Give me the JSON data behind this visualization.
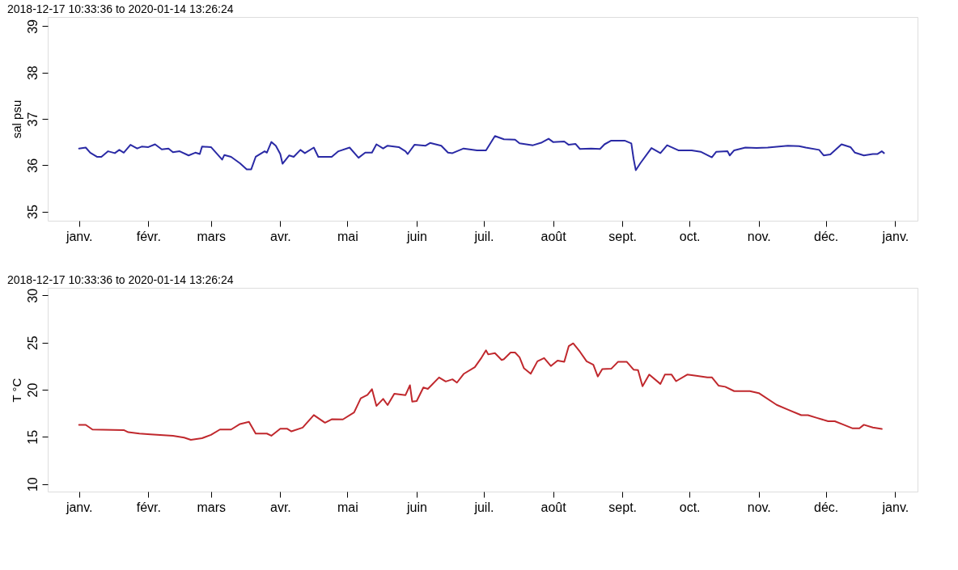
{
  "chart_data": [
    {
      "type": "line",
      "title": "2018-12-17 10:33:36 to 2020-01-14 13:26:24",
      "ylabel": "sal psu",
      "grid": false,
      "marker": "none",
      "line_style": "solid",
      "xlim": [
        "2018-12-18",
        "2020-01-11"
      ],
      "ylim": [
        34.8,
        39.2
      ],
      "yticks": [
        35,
        36,
        37,
        38,
        39
      ],
      "xticks": [
        {
          "value": "2019-01-01",
          "label": "janv."
        },
        {
          "value": "2019-02-01",
          "label": "févr."
        },
        {
          "value": "2019-03-01",
          "label": "mars"
        },
        {
          "value": "2019-04-01",
          "label": "avr."
        },
        {
          "value": "2019-05-01",
          "label": "mai"
        },
        {
          "value": "2019-06-01",
          "label": "juin"
        },
        {
          "value": "2019-07-01",
          "label": "juil."
        },
        {
          "value": "2019-08-01",
          "label": "août"
        },
        {
          "value": "2019-09-01",
          "label": "sept."
        },
        {
          "value": "2019-10-01",
          "label": "oct."
        },
        {
          "value": "2019-11-01",
          "label": "nov."
        },
        {
          "value": "2019-12-01",
          "label": "déc."
        },
        {
          "value": "2020-01-01",
          "label": "janv."
        }
      ],
      "series": [
        {
          "color": "#2a2aa5",
          "x": [
            "2019-01-01",
            "2019-01-04",
            "2019-01-06",
            "2019-01-09",
            "2019-01-11",
            "2019-01-14",
            "2019-01-17",
            "2019-01-19",
            "2019-01-21",
            "2019-01-24",
            "2019-01-27",
            "2019-01-29",
            "2019-02-01",
            "2019-02-04",
            "2019-02-07",
            "2019-02-10",
            "2019-02-12",
            "2019-02-15",
            "2019-02-19",
            "2019-02-22",
            "2019-02-24",
            "2019-02-25",
            "2019-03-01",
            "2019-03-06",
            "2019-03-07",
            "2019-03-10",
            "2019-03-14",
            "2019-03-17",
            "2019-03-19",
            "2019-03-21",
            "2019-03-25",
            "2019-03-26",
            "2019-03-28",
            "2019-03-30",
            "2019-04-01",
            "2019-04-02",
            "2019-04-05",
            "2019-04-07",
            "2019-04-10",
            "2019-04-12",
            "2019-04-16",
            "2019-04-18",
            "2019-04-24",
            "2019-04-27",
            "2019-05-02",
            "2019-05-06",
            "2019-05-09",
            "2019-05-12",
            "2019-05-14",
            "2019-05-17",
            "2019-05-19",
            "2019-05-24",
            "2019-05-27",
            "2019-05-28",
            "2019-05-31",
            "2019-06-05",
            "2019-06-07",
            "2019-06-12",
            "2019-06-15",
            "2019-06-17",
            "2019-06-22",
            "2019-06-28",
            "2019-07-02",
            "2019-07-06",
            "2019-07-10",
            "2019-07-15",
            "2019-07-17",
            "2019-07-23",
            "2019-07-27",
            "2019-07-30",
            "2019-08-01",
            "2019-08-06",
            "2019-08-08",
            "2019-08-11",
            "2019-08-13",
            "2019-08-18",
            "2019-08-22",
            "2019-08-24",
            "2019-08-27",
            "2019-09-02",
            "2019-09-05",
            "2019-09-06",
            "2019-09-07",
            "2019-09-09",
            "2019-09-14",
            "2019-09-18",
            "2019-09-21",
            "2019-09-26",
            "2019-10-02",
            "2019-10-06",
            "2019-10-11",
            "2019-10-13",
            "2019-10-18",
            "2019-10-19",
            "2019-10-21",
            "2019-10-26",
            "2019-10-31",
            "2019-11-05",
            "2019-11-14",
            "2019-11-19",
            "2019-11-22",
            "2019-11-28",
            "2019-11-30",
            "2019-12-03",
            "2019-12-08",
            "2019-12-12",
            "2019-12-14",
            "2019-12-18",
            "2019-12-22",
            "2019-12-24",
            "2019-12-26",
            "2019-12-27"
          ],
          "values": [
            36.36,
            36.38,
            36.27,
            36.18,
            36.18,
            36.3,
            36.26,
            36.33,
            36.27,
            36.44,
            36.36,
            36.4,
            36.39,
            36.45,
            36.34,
            36.36,
            36.28,
            36.3,
            36.21,
            36.27,
            36.24,
            36.4,
            36.39,
            36.12,
            36.22,
            36.18,
            36.04,
            35.91,
            35.91,
            36.18,
            36.3,
            36.27,
            36.5,
            36.42,
            36.24,
            36.03,
            36.21,
            36.18,
            36.33,
            36.26,
            36.38,
            36.18,
            36.18,
            36.3,
            36.38,
            36.16,
            36.27,
            36.27,
            36.45,
            36.36,
            36.42,
            36.39,
            36.3,
            36.24,
            36.44,
            36.42,
            36.48,
            36.42,
            36.27,
            36.26,
            36.36,
            36.32,
            36.32,
            36.63,
            36.56,
            36.55,
            36.47,
            36.43,
            36.49,
            36.57,
            36.5,
            36.51,
            36.44,
            36.46,
            36.35,
            36.36,
            36.35,
            36.45,
            36.53,
            36.53,
            36.47,
            36.14,
            35.89,
            36.04,
            36.37,
            36.26,
            36.43,
            36.32,
            36.32,
            36.29,
            36.17,
            36.29,
            36.3,
            36.21,
            36.32,
            36.38,
            36.37,
            36.38,
            36.42,
            36.41,
            36.38,
            36.33,
            36.21,
            36.23,
            36.45,
            36.39,
            36.27,
            36.21,
            36.24,
            36.24,
            36.3,
            36.26
          ]
        }
      ]
    },
    {
      "type": "line",
      "title": "2018-12-17 10:33:36 to 2020-01-14 13:26:24",
      "ylabel": "T °C",
      "grid": false,
      "marker": "none",
      "line_style": "solid",
      "xlim": [
        "2018-12-18",
        "2020-01-11"
      ],
      "ylim": [
        9.2,
        30.8
      ],
      "yticks": [
        10,
        15,
        20,
        25,
        30
      ],
      "xticks": [
        {
          "value": "2019-01-01",
          "label": "janv."
        },
        {
          "value": "2019-02-01",
          "label": "févr."
        },
        {
          "value": "2019-03-01",
          "label": "mars"
        },
        {
          "value": "2019-04-01",
          "label": "avr."
        },
        {
          "value": "2019-05-01",
          "label": "mai"
        },
        {
          "value": "2019-06-01",
          "label": "juin"
        },
        {
          "value": "2019-07-01",
          "label": "juil."
        },
        {
          "value": "2019-08-01",
          "label": "août"
        },
        {
          "value": "2019-09-01",
          "label": "sept."
        },
        {
          "value": "2019-10-01",
          "label": "oct."
        },
        {
          "value": "2019-11-01",
          "label": "nov."
        },
        {
          "value": "2019-12-01",
          "label": "déc."
        },
        {
          "value": "2020-01-01",
          "label": "janv."
        }
      ],
      "series": [
        {
          "color": "#c0282d",
          "x": [
            "2019-01-01",
            "2019-01-04",
            "2019-01-07",
            "2019-01-21",
            "2019-01-23",
            "2019-01-28",
            "2019-02-02",
            "2019-02-12",
            "2019-02-17",
            "2019-02-20",
            "2019-02-25",
            "2019-03-01",
            "2019-03-05",
            "2019-03-10",
            "2019-03-14",
            "2019-03-18",
            "2019-03-21",
            "2019-03-26",
            "2019-03-28",
            "2019-04-01",
            "2019-04-04",
            "2019-04-06",
            "2019-04-11",
            "2019-04-16",
            "2019-04-21",
            "2019-04-24",
            "2019-04-29",
            "2019-05-04",
            "2019-05-07",
            "2019-05-10",
            "2019-05-12",
            "2019-05-14",
            "2019-05-17",
            "2019-05-19",
            "2019-05-22",
            "2019-05-27",
            "2019-05-29",
            "2019-05-30",
            "2019-06-01",
            "2019-06-04",
            "2019-06-06",
            "2019-06-11",
            "2019-06-14",
            "2019-06-17",
            "2019-06-19",
            "2019-06-22",
            "2019-06-27",
            "2019-06-30",
            "2019-07-02",
            "2019-07-03",
            "2019-07-06",
            "2019-07-09",
            "2019-07-10",
            "2019-07-13",
            "2019-07-15",
            "2019-07-17",
            "2019-07-19",
            "2019-07-22",
            "2019-07-25",
            "2019-07-28",
            "2019-07-31",
            "2019-08-03",
            "2019-08-06",
            "2019-08-08",
            "2019-08-10",
            "2019-08-13",
            "2019-08-16",
            "2019-08-19",
            "2019-08-21",
            "2019-08-23",
            "2019-08-27",
            "2019-08-30",
            "2019-09-03",
            "2019-09-06",
            "2019-09-08",
            "2019-09-10",
            "2019-09-13",
            "2019-09-18",
            "2019-09-20",
            "2019-09-23",
            "2019-09-25",
            "2019-09-30",
            "2019-10-04",
            "2019-10-09",
            "2019-10-11",
            "2019-10-14",
            "2019-10-17",
            "2019-10-21",
            "2019-10-28",
            "2019-11-01",
            "2019-11-09",
            "2019-11-14",
            "2019-11-20",
            "2019-11-23",
            "2019-11-27",
            "2019-12-02",
            "2019-12-05",
            "2019-12-09",
            "2019-12-13",
            "2019-12-16",
            "2019-12-18",
            "2019-12-22",
            "2019-12-26"
          ],
          "values": [
            16.27,
            16.27,
            15.78,
            15.72,
            15.49,
            15.35,
            15.26,
            15.12,
            14.92,
            14.69,
            14.86,
            15.21,
            15.78,
            15.78,
            16.36,
            16.59,
            15.35,
            15.35,
            15.12,
            15.87,
            15.87,
            15.58,
            15.98,
            17.31,
            16.5,
            16.87,
            16.85,
            17.59,
            19.09,
            19.46,
            20.06,
            18.28,
            19.03,
            18.37,
            19.58,
            19.43,
            20.47,
            18.74,
            18.8,
            20.24,
            20.09,
            21.3,
            20.87,
            21.1,
            20.75,
            21.67,
            22.39,
            23.4,
            24.17,
            23.74,
            23.88,
            23.15,
            23.24,
            23.94,
            23.94,
            23.44,
            22.27,
            21.69,
            23.01,
            23.36,
            22.51,
            23.09,
            22.95,
            24.61,
            24.91,
            24.03,
            23.01,
            22.65,
            21.4,
            22.19,
            22.22,
            22.95,
            22.95,
            22.13,
            22.07,
            20.37,
            21.6,
            20.61,
            21.6,
            21.6,
            20.9,
            21.6,
            21.48,
            21.31,
            21.31,
            20.43,
            20.31,
            19.85,
            19.85,
            19.64,
            18.39,
            17.89,
            17.3,
            17.3,
            17.01,
            16.66,
            16.66,
            16.28,
            15.9,
            15.9,
            16.28,
            15.99,
            15.84
          ]
        }
      ]
    }
  ]
}
